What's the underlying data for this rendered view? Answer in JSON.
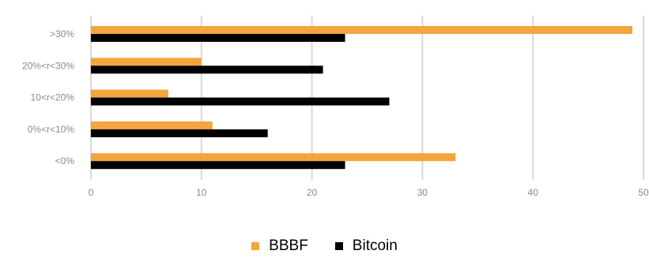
{
  "chart_data": {
    "type": "bar",
    "orientation": "horizontal",
    "categories": [
      ">30%",
      "20%<r<30%",
      "10<r<20%",
      "0%<r<10%",
      "<0%"
    ],
    "series": [
      {
        "name": "BBBF",
        "color": "#f5a43e",
        "values": [
          49,
          10,
          7,
          11,
          33
        ]
      },
      {
        "name": "Bitcoin",
        "color": "#000000",
        "values": [
          23,
          21,
          27,
          16,
          23
        ]
      }
    ],
    "xlim": [
      0,
      50
    ],
    "xticks": [
      0,
      10,
      20,
      30,
      40,
      50
    ],
    "grid": true,
    "legend": "bottom-center",
    "title": "",
    "xlabel": "",
    "ylabel": ""
  }
}
